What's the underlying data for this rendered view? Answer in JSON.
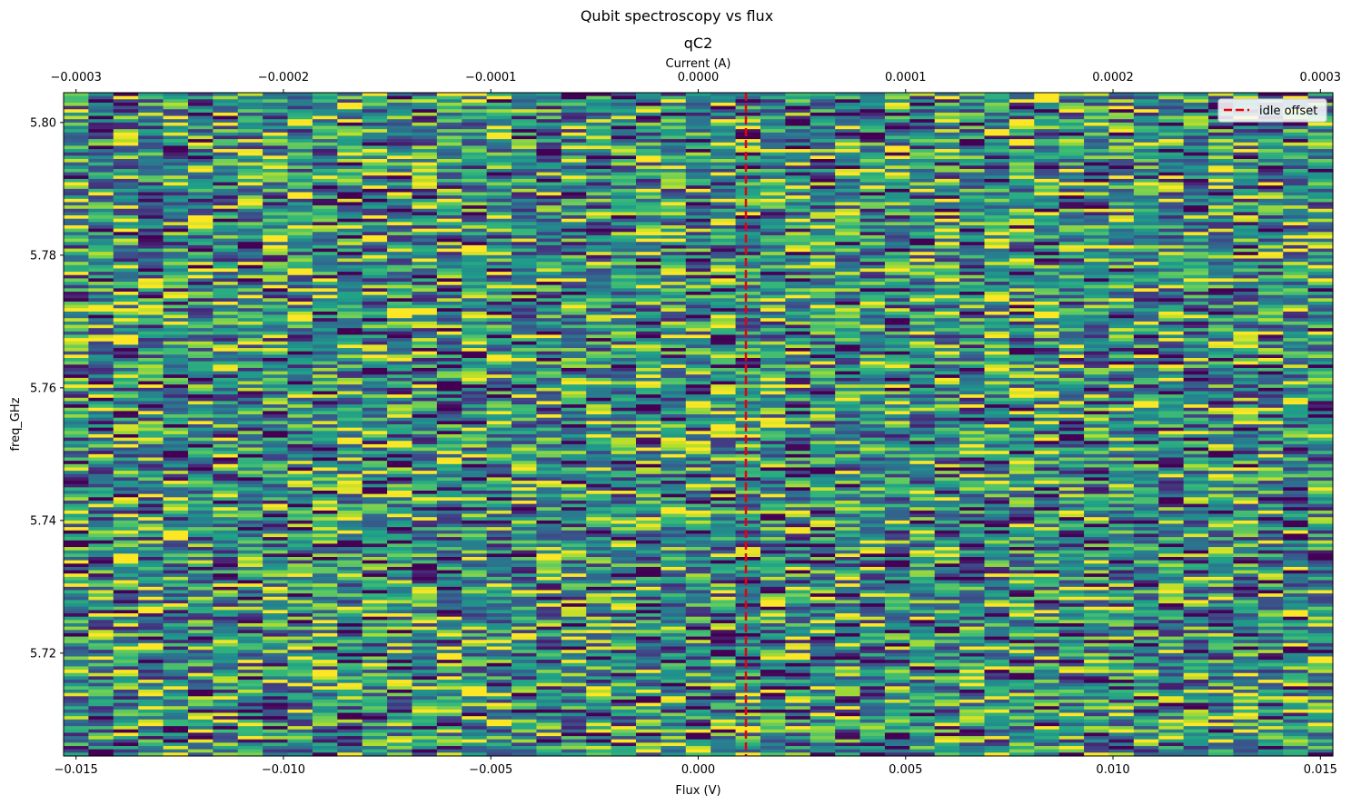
{
  "chart_data": {
    "type": "heatmap",
    "suptitle": "Qubit spectroscopy vs flux",
    "title": "qC2",
    "xlabel": "Flux (V)",
    "ylabel": "freq_GHz",
    "secondary_xlabel": "Current (A)",
    "xlim": [
      -0.0153,
      0.0153
    ],
    "ylim": [
      5.7045,
      5.8045
    ],
    "secondary_xlim": [
      -0.000306,
      0.000306
    ],
    "x_ticks": [
      -0.015,
      -0.01,
      -0.005,
      0.0,
      0.005,
      0.01,
      0.015
    ],
    "x_tick_labels": [
      "−0.015",
      "−0.010",
      "−0.005",
      "0.000",
      "0.005",
      "0.010",
      "0.015"
    ],
    "y_ticks": [
      5.72,
      5.74,
      5.76,
      5.78,
      5.8
    ],
    "y_tick_labels": [
      "5.72",
      "5.74",
      "5.76",
      "5.78",
      "5.80"
    ],
    "secondary_x_ticks": [
      -0.0003,
      -0.0002,
      -0.0001,
      0.0,
      0.0001,
      0.0002,
      0.0003
    ],
    "secondary_x_tick_labels": [
      "−0.0003",
      "−0.0002",
      "−0.0001",
      "0.0000",
      "0.0001",
      "0.0002",
      "0.0003"
    ],
    "x_columns": 51,
    "y_rows": 200,
    "colormap": "viridis",
    "values_note": "noise-like signal, no resonance visible",
    "idle_offset": 0.00115,
    "legend": {
      "label": "idle offset",
      "location": "upper right"
    },
    "line_color": "#e8000b"
  }
}
